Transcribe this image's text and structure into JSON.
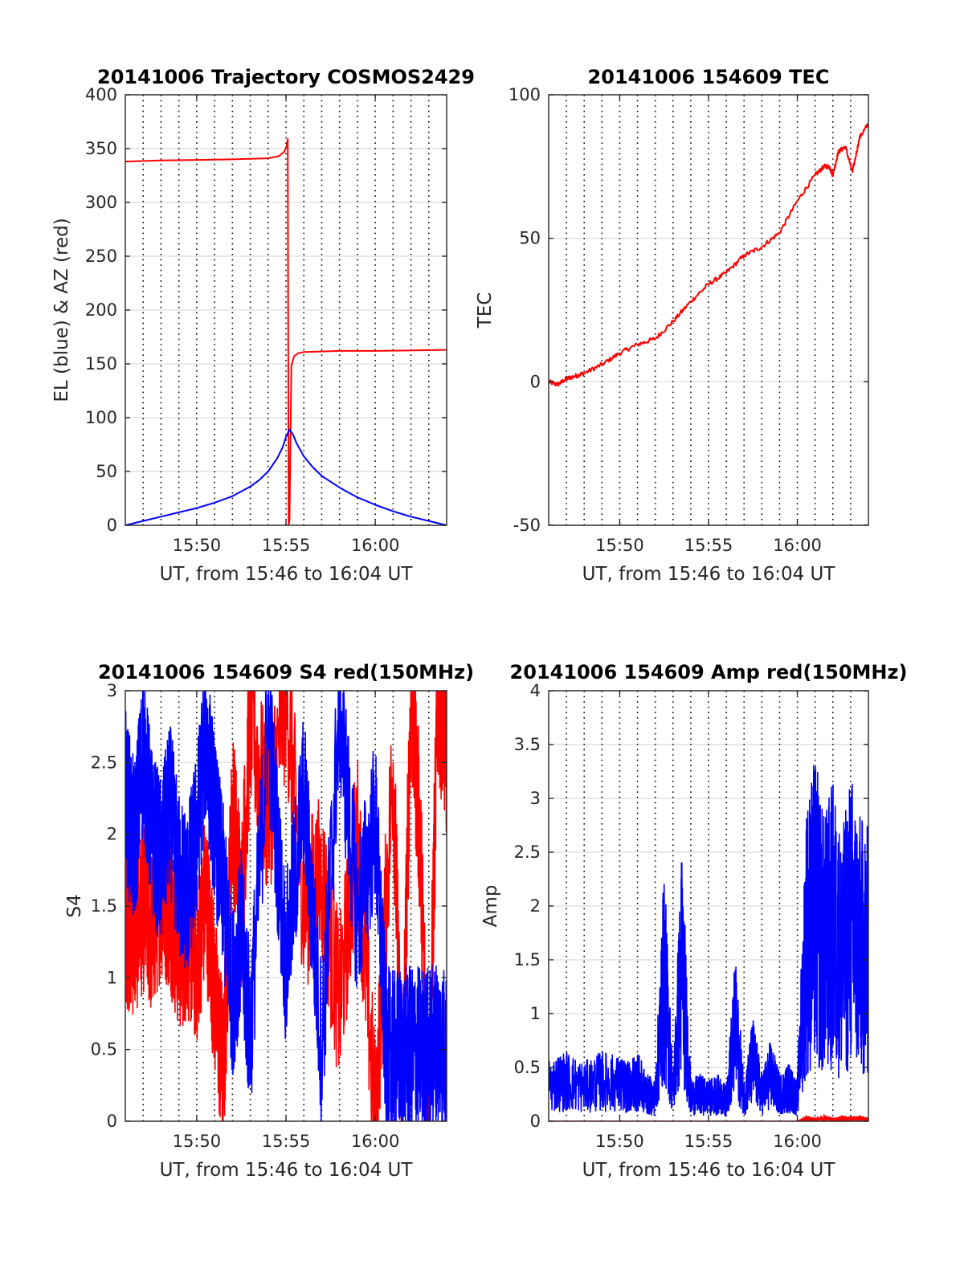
{
  "colors": {
    "red": "#ff0000",
    "blue": "#0000ff",
    "grid": "#000000",
    "hgrid": "#dcdcdc",
    "axis": "#262626"
  },
  "chart_data": [
    {
      "id": "traj",
      "type": "line",
      "title": "20141006 Trajectory COSMOS2429",
      "xlabel": "UT, from 15:46 to 16:04 UT",
      "ylabel": "EL (blue) & AZ (red)",
      "xlim": [
        0,
        18
      ],
      "ylim": [
        0,
        400
      ],
      "yticks": [
        "0",
        "50",
        "100",
        "150",
        "200",
        "250",
        "300",
        "350",
        "400"
      ],
      "xtick_labels": [
        "15:50",
        "15:55",
        "16:00"
      ],
      "xtick_minutes": [
        4,
        9,
        14
      ],
      "x_grid": "dotted, 1-minute spacing",
      "y_grid": "light solid",
      "series": [
        {
          "color": "red",
          "x": [
            0,
            2,
            4,
            6,
            8,
            8.6,
            8.9,
            9.05,
            9.1,
            9.15,
            9.2,
            9.3,
            9.45,
            9.7,
            10,
            11,
            12,
            14,
            16,
            18
          ],
          "y": [
            338,
            339,
            339.5,
            340,
            341,
            343,
            347,
            353,
            359,
            0,
            5,
            148,
            157,
            160,
            161,
            161.5,
            162,
            162,
            162.5,
            163
          ]
        },
        {
          "color": "blue",
          "x": [
            0,
            1,
            2,
            3,
            4,
            5,
            6,
            7,
            7.5,
            8,
            8.5,
            8.8,
            9.0,
            9.2,
            9.4,
            9.6,
            10,
            10.5,
            11,
            12,
            13,
            14,
            15,
            16,
            17,
            18
          ],
          "y": [
            0,
            4,
            8,
            12,
            16,
            21,
            27,
            36,
            42,
            50,
            62,
            72,
            82,
            89,
            84,
            76,
            64,
            54,
            46,
            35,
            26,
            19,
            13,
            8,
            4,
            0
          ]
        }
      ]
    },
    {
      "id": "tec",
      "type": "line",
      "title": "20141006 154609 TEC",
      "xlabel": "UT, from 15:46 to 16:04 UT",
      "ylabel": "TEC",
      "xlim": [
        0,
        18
      ],
      "ylim": [
        -50,
        100
      ],
      "yticks": [
        "-50",
        "0",
        "50",
        "100"
      ],
      "xtick_labels": [
        "15:50",
        "15:55",
        "16:00"
      ],
      "xtick_minutes": [
        4,
        9,
        14
      ],
      "series": [
        {
          "color": "red",
          "x": [
            0,
            0.5,
            1,
            1.5,
            2,
            3,
            4,
            5,
            6,
            7,
            8,
            9,
            10,
            11,
            12,
            13,
            14,
            15,
            15.5,
            15.8,
            16,
            16.3,
            16.7,
            17.1,
            17.5,
            18
          ],
          "y": [
            0,
            -1,
            1,
            2,
            3,
            6,
            10,
            13,
            15,
            21,
            28,
            34,
            38,
            44,
            47,
            52,
            63,
            72,
            75,
            75,
            72,
            80,
            82,
            73,
            85,
            90
          ]
        }
      ]
    },
    {
      "id": "s4",
      "type": "line",
      "title": "20141006 154609 S4 red(150MHz)",
      "xlabel": "UT, from 15:46 to 16:04 UT",
      "ylabel": "S4",
      "xlim": [
        0,
        18
      ],
      "ylim": [
        0,
        3
      ],
      "yticks": [
        "0",
        "0.5",
        "1",
        "1.5",
        "2",
        "2.5",
        "3"
      ],
      "xtick_labels": [
        "15:50",
        "15:55",
        "16:00"
      ],
      "xtick_minutes": [
        4,
        9,
        14
      ],
      "series": [
        {
          "color": "red",
          "x": [
            0,
            0.5,
            1,
            1.5,
            2,
            2.5,
            3,
            3.5,
            4,
            4.5,
            5,
            5.5,
            6,
            6.5,
            7,
            8,
            9,
            10,
            11,
            12,
            13,
            14,
            15,
            15.5,
            16,
            16.5,
            17,
            17.5,
            18
          ],
          "y": [
            1.4,
            1.3,
            1.5,
            1.3,
            1.6,
            1.5,
            1.2,
            1.3,
            1.1,
            1.6,
            0.9,
            0.3,
            2.2,
            1.5,
            2.8,
            2.1,
            3.0,
            1.5,
            1.7,
            0.8,
            2.0,
            0.0,
            2.5,
            0.0,
            3.0,
            2.0,
            0.0,
            3.0,
            2.6
          ]
        },
        {
          "color": "blue",
          "x": [
            0,
            0.5,
            1,
            1.5,
            2,
            2.5,
            3,
            3.5,
            4,
            4.5,
            5,
            5.5,
            6,
            6.5,
            7,
            8,
            9,
            10,
            11,
            12,
            13,
            14,
            14.6,
            15,
            15.5,
            16,
            16.5,
            17,
            17.5,
            18
          ],
          "y": [
            2.3,
            1.9,
            2.6,
            2.0,
            1.8,
            2.2,
            1.7,
            1.6,
            2.0,
            2.7,
            2.1,
            1.6,
            0.9,
            1.3,
            0.6,
            2.8,
            1.1,
            2.3,
            0.5,
            2.9,
            1.4,
            2.1,
            0.5,
            0.45,
            0.5,
            0.48,
            0.5,
            0.5,
            0.55,
            0.5
          ]
        }
      ]
    },
    {
      "id": "amp",
      "type": "line",
      "title": "20141006 154609 Amp red(150MHz)",
      "xlabel": "UT, from 15:46 to 16:04 UT",
      "ylabel": "Amp",
      "xlim": [
        0,
        18
      ],
      "ylim": [
        0,
        4
      ],
      "yticks": [
        "0",
        "0.5",
        "1",
        "1.5",
        "2",
        "2.5",
        "3",
        "3.5",
        "4"
      ],
      "xtick_labels": [
        "15:50",
        "15:55",
        "16:00"
      ],
      "xtick_minutes": [
        4,
        9,
        14
      ],
      "series": [
        {
          "color": "red",
          "x": [
            0,
            3,
            6,
            9,
            12,
            14,
            14.5,
            15,
            15.5,
            16,
            16.5,
            17,
            17.5,
            18
          ],
          "y": [
            0,
            0,
            0,
            0,
            0,
            0,
            0.05,
            0.03,
            0.06,
            0.03,
            0.05,
            0.04,
            0.05,
            0.03
          ]
        },
        {
          "color": "blue",
          "x": [
            0,
            1,
            2,
            3,
            4,
            4.5,
            5,
            5.5,
            6,
            6.5,
            7,
            7.5,
            8,
            8.5,
            9,
            9.5,
            10,
            10.5,
            11,
            11.5,
            12,
            12.5,
            13,
            13.5,
            14,
            14.5,
            15,
            15.5,
            16,
            16.5,
            17,
            17.5,
            18
          ],
          "y": [
            0.55,
            0.6,
            0.5,
            0.6,
            0.55,
            0.5,
            0.6,
            0.4,
            0.35,
            2.2,
            0.4,
            2.4,
            0.35,
            0.4,
            0.35,
            0.4,
            0.3,
            1.4,
            0.35,
            0.9,
            0.4,
            0.7,
            0.4,
            0.5,
            0.35,
            2.7,
            3.1,
            2.6,
            2.9,
            2.4,
            3.0,
            2.6,
            2.5
          ]
        }
      ]
    }
  ]
}
